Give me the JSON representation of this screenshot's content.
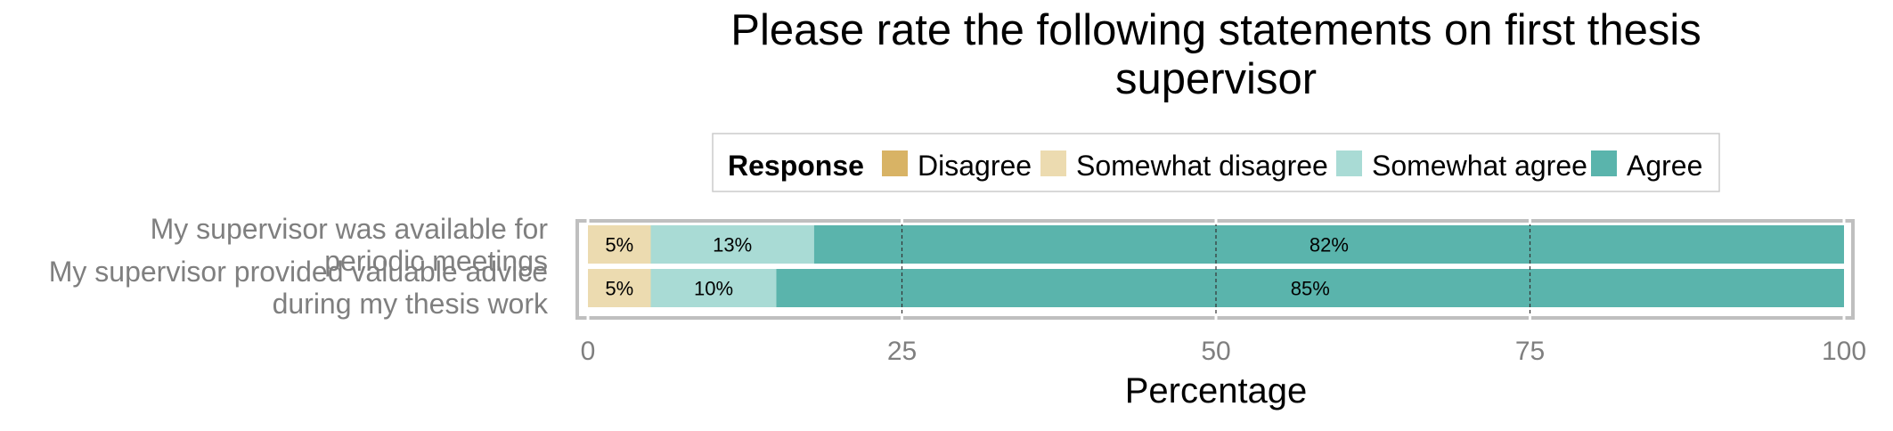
{
  "chart_data": {
    "type": "bar",
    "orientation": "horizontal",
    "stacked": true,
    "title_lines": [
      "Please rate the following statements on first thesis",
      "supervisor"
    ],
    "legend": {
      "title": "Response",
      "position": "top",
      "entries": [
        "Disagree",
        "Somewhat disagree",
        "Somewhat agree",
        "Agree"
      ]
    },
    "colors": [
      "#d8b365",
      "#ecdbb0",
      "#a9dbd5",
      "#5ab4ac"
    ],
    "categories": [
      [
        "My supervisor was available for",
        "periodic meetings"
      ],
      [
        "My supervisor provided valuable advice",
        "during my thesis work"
      ]
    ],
    "series": [
      {
        "name": "Disagree",
        "values": [
          0,
          0
        ]
      },
      {
        "name": "Somewhat disagree",
        "values": [
          5,
          5
        ]
      },
      {
        "name": "Somewhat agree",
        "values": [
          13,
          10
        ]
      },
      {
        "name": "Agree",
        "values": [
          82,
          85
        ]
      }
    ],
    "data_labels": [
      [
        null,
        "5%",
        "13%",
        "82%"
      ],
      [
        null,
        "5%",
        "10%",
        "85%"
      ]
    ],
    "xlabel": "Percentage",
    "xlim": [
      0,
      100
    ],
    "xticks": [
      0,
      25,
      50,
      75,
      100
    ],
    "dashed_gridlines": [
      25,
      50,
      75
    ],
    "grid": true
  }
}
